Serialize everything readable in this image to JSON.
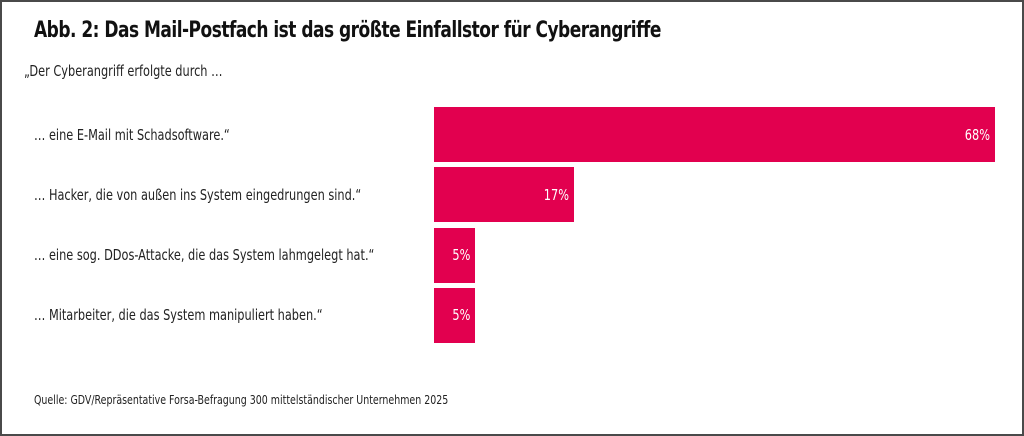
{
  "chart_data": {
    "type": "bar",
    "orientation": "horizontal",
    "title": "Abb. 2: Das Mail-Postfach ist das größte Einfallstor für Cyberangriffe",
    "subtitle": "„Der Cyberangriff erfolgte durch …",
    "categories": [
      "… eine E-Mail mit Schadsoftware.“",
      "… Hacker, die von außen ins System eingedrungen sind.“",
      "… eine sog. DDos-Attacke, die das System lahmgelegt hat.“",
      "… Mitarbeiter, die das System manipuliert haben.“"
    ],
    "values": [
      68,
      17,
      5,
      5
    ],
    "value_labels": [
      "68%",
      "17%",
      "5%",
      "5%"
    ],
    "unit": "%",
    "xlabel": "",
    "ylabel": "",
    "xlim": [
      0,
      68
    ],
    "grid": false,
    "legend": "none",
    "bar_color": "#e2004f",
    "label_color": "#ffffff",
    "source": "Quelle: GDV/Repräsentative Forsa-Befragung 300 mittelständischer Unternehmen 2025"
  }
}
